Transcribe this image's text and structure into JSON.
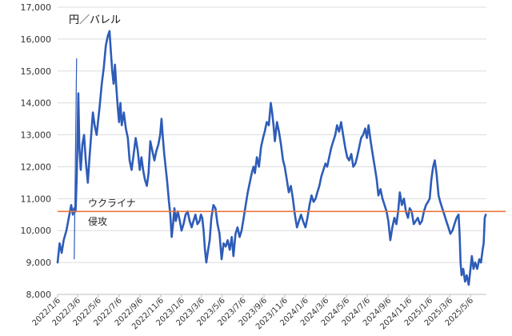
{
  "chart_data": {
    "type": "line",
    "unit_label": "円／バレル",
    "ylim": [
      8000,
      17000
    ],
    "y_ticks": [
      "8,000",
      "9,000",
      "10,000",
      "11,000",
      "12,000",
      "13,000",
      "14,000",
      "15,000",
      "16,000",
      "17,000"
    ],
    "y_tick_values": [
      8000,
      9000,
      10000,
      11000,
      12000,
      13000,
      14000,
      15000,
      16000,
      17000
    ],
    "x_ticks": [
      "2022/1/6",
      "2022/3/6",
      "2022/5/6",
      "2022/7/6",
      "2022/9/6",
      "2022/11/6",
      "2023/1/6",
      "2023/3/6",
      "2023/5/6",
      "2023/7/6",
      "2023/9/6",
      "2023/11/6",
      "2024/1/6",
      "2024/3/6",
      "2024/5/6",
      "2024/7/6",
      "2024/9/6",
      "2024/11/6",
      "2025/1/6",
      "2025/3/6",
      "2025/5/6"
    ],
    "x_range": [
      "2022-01-06",
      "2025-06-22"
    ],
    "reference_line": {
      "value": 10600,
      "color": "#e8743b"
    },
    "annotation": {
      "line1": "ウクライナ",
      "line2": "侵攻"
    },
    "grid": "horizontal",
    "legend": "none",
    "series": [
      {
        "color": "#2e5cb8",
        "points": [
          [
            "2022-01-06",
            9000
          ],
          [
            "2022-01-12",
            9600
          ],
          [
            "2022-01-18",
            9300
          ],
          [
            "2022-01-24",
            9700
          ],
          [
            "2022-02-01",
            10000
          ],
          [
            "2022-02-08",
            10400
          ],
          [
            "2022-02-15",
            10800
          ],
          [
            "2022-02-20",
            10500
          ],
          [
            "2022-02-24",
            10700
          ],
          [
            "2022-02-28",
            10600
          ],
          [
            "2022-03-03",
            11600
          ],
          [
            "2022-03-06",
            13000
          ],
          [
            "2022-03-08",
            14300
          ],
          [
            "2022-03-11",
            12600
          ],
          [
            "2022-03-15",
            11900
          ],
          [
            "2022-03-20",
            12700
          ],
          [
            "2022-03-25",
            13000
          ],
          [
            "2022-03-30",
            12200
          ],
          [
            "2022-04-05",
            11500
          ],
          [
            "2022-04-10",
            12300
          ],
          [
            "2022-04-15",
            13000
          ],
          [
            "2022-04-20",
            13700
          ],
          [
            "2022-04-25",
            13300
          ],
          [
            "2022-05-01",
            13000
          ],
          [
            "2022-05-06",
            13500
          ],
          [
            "2022-05-10",
            13900
          ],
          [
            "2022-05-16",
            14600
          ],
          [
            "2022-05-22",
            15100
          ],
          [
            "2022-05-28",
            15800
          ],
          [
            "2022-06-03",
            16100
          ],
          [
            "2022-06-08",
            16250
          ],
          [
            "2022-06-12",
            15600
          ],
          [
            "2022-06-16",
            15000
          ],
          [
            "2022-06-20",
            14600
          ],
          [
            "2022-06-24",
            15200
          ],
          [
            "2022-06-28",
            14500
          ],
          [
            "2022-07-02",
            13900
          ],
          [
            "2022-07-06",
            13400
          ],
          [
            "2022-07-10",
            14000
          ],
          [
            "2022-07-14",
            13300
          ],
          [
            "2022-07-20",
            13700
          ],
          [
            "2022-07-26",
            13200
          ],
          [
            "2022-08-01",
            12900
          ],
          [
            "2022-08-06",
            12200
          ],
          [
            "2022-08-12",
            11900
          ],
          [
            "2022-08-18",
            12400
          ],
          [
            "2022-08-24",
            12900
          ],
          [
            "2022-08-30",
            12500
          ],
          [
            "2022-09-05",
            11900
          ],
          [
            "2022-09-10",
            12300
          ],
          [
            "2022-09-15",
            11900
          ],
          [
            "2022-09-20",
            11600
          ],
          [
            "2022-09-26",
            11400
          ],
          [
            "2022-10-01",
            11800
          ],
          [
            "2022-10-06",
            12800
          ],
          [
            "2022-10-12",
            12500
          ],
          [
            "2022-10-18",
            12200
          ],
          [
            "2022-10-24",
            12500
          ],
          [
            "2022-10-30",
            12700
          ],
          [
            "2022-11-04",
            13000
          ],
          [
            "2022-11-08",
            13500
          ],
          [
            "2022-11-12",
            12900
          ],
          [
            "2022-11-16",
            12400
          ],
          [
            "2022-11-20",
            12000
          ],
          [
            "2022-11-25",
            11500
          ],
          [
            "2022-11-30",
            10900
          ],
          [
            "2022-12-04",
            10500
          ],
          [
            "2022-12-08",
            9800
          ],
          [
            "2022-12-12",
            10200
          ],
          [
            "2022-12-16",
            10700
          ],
          [
            "2022-12-20",
            10300
          ],
          [
            "2022-12-26",
            10600
          ],
          [
            "2023-01-01",
            10300
          ],
          [
            "2023-01-06",
            10000
          ],
          [
            "2023-01-12",
            10200
          ],
          [
            "2023-01-18",
            10500
          ],
          [
            "2023-01-24",
            10600
          ],
          [
            "2023-01-30",
            10300
          ],
          [
            "2023-02-05",
            10100
          ],
          [
            "2023-02-10",
            10300
          ],
          [
            "2023-02-16",
            10500
          ],
          [
            "2023-02-22",
            10200
          ],
          [
            "2023-02-28",
            10300
          ],
          [
            "2023-03-04",
            10500
          ],
          [
            "2023-03-08",
            10400
          ],
          [
            "2023-03-12",
            10000
          ],
          [
            "2023-03-16",
            9400
          ],
          [
            "2023-03-20",
            9000
          ],
          [
            "2023-03-24",
            9300
          ],
          [
            "2023-03-30",
            9700
          ],
          [
            "2023-04-04",
            10400
          ],
          [
            "2023-04-10",
            10800
          ],
          [
            "2023-04-16",
            10700
          ],
          [
            "2023-04-22",
            10200
          ],
          [
            "2023-04-28",
            9900
          ],
          [
            "2023-05-04",
            9100
          ],
          [
            "2023-05-10",
            9600
          ],
          [
            "2023-05-16",
            9500
          ],
          [
            "2023-05-22",
            9700
          ],
          [
            "2023-05-28",
            9400
          ],
          [
            "2023-06-03",
            9800
          ],
          [
            "2023-06-08",
            9200
          ],
          [
            "2023-06-14",
            9900
          ],
          [
            "2023-06-20",
            10100
          ],
          [
            "2023-06-26",
            9800
          ],
          [
            "2023-07-02",
            10000
          ],
          [
            "2023-07-08",
            10400
          ],
          [
            "2023-07-14",
            10800
          ],
          [
            "2023-07-20",
            11200
          ],
          [
            "2023-07-26",
            11500
          ],
          [
            "2023-08-01",
            11800
          ],
          [
            "2023-08-06",
            12000
          ],
          [
            "2023-08-10",
            11800
          ],
          [
            "2023-08-16",
            12300
          ],
          [
            "2023-08-22",
            12000
          ],
          [
            "2023-08-28",
            12600
          ],
          [
            "2023-09-03",
            12900
          ],
          [
            "2023-09-08",
            13100
          ],
          [
            "2023-09-14",
            13400
          ],
          [
            "2023-09-20",
            13300
          ],
          [
            "2023-09-26",
            14000
          ],
          [
            "2023-09-30",
            13700
          ],
          [
            "2023-10-04",
            13300
          ],
          [
            "2023-10-08",
            12800
          ],
          [
            "2023-10-14",
            13400
          ],
          [
            "2023-10-20",
            13100
          ],
          [
            "2023-10-26",
            12700
          ],
          [
            "2023-11-01",
            12200
          ],
          [
            "2023-11-06",
            12000
          ],
          [
            "2023-11-12",
            11600
          ],
          [
            "2023-11-18",
            11200
          ],
          [
            "2023-11-24",
            11400
          ],
          [
            "2023-11-30",
            11000
          ],
          [
            "2023-12-06",
            10500
          ],
          [
            "2023-12-12",
            10100
          ],
          [
            "2023-12-18",
            10300
          ],
          [
            "2023-12-24",
            10500
          ],
          [
            "2023-12-30",
            10300
          ],
          [
            "2024-01-06",
            10100
          ],
          [
            "2024-01-12",
            10400
          ],
          [
            "2024-01-18",
            10800
          ],
          [
            "2024-01-24",
            11100
          ],
          [
            "2024-01-30",
            10900
          ],
          [
            "2024-02-05",
            11000
          ],
          [
            "2024-02-10",
            11200
          ],
          [
            "2024-02-16",
            11400
          ],
          [
            "2024-02-22",
            11700
          ],
          [
            "2024-02-28",
            11900
          ],
          [
            "2024-03-05",
            12100
          ],
          [
            "2024-03-10",
            12000
          ],
          [
            "2024-03-16",
            12300
          ],
          [
            "2024-03-22",
            12600
          ],
          [
            "2024-03-28",
            12800
          ],
          [
            "2024-04-03",
            13000
          ],
          [
            "2024-04-08",
            13300
          ],
          [
            "2024-04-14",
            13100
          ],
          [
            "2024-04-20",
            13400
          ],
          [
            "2024-04-26",
            13000
          ],
          [
            "2024-05-02",
            12600
          ],
          [
            "2024-05-08",
            12300
          ],
          [
            "2024-05-14",
            12200
          ],
          [
            "2024-05-20",
            12400
          ],
          [
            "2024-05-26",
            12000
          ],
          [
            "2024-06-01",
            12100
          ],
          [
            "2024-06-06",
            12300
          ],
          [
            "2024-06-12",
            12600
          ],
          [
            "2024-06-18",
            12900
          ],
          [
            "2024-06-24",
            13000
          ],
          [
            "2024-06-30",
            13200
          ],
          [
            "2024-07-05",
            12900
          ],
          [
            "2024-07-10",
            13300
          ],
          [
            "2024-07-16",
            12800
          ],
          [
            "2024-07-22",
            12400
          ],
          [
            "2024-07-28",
            12000
          ],
          [
            "2024-08-03",
            11600
          ],
          [
            "2024-08-08",
            11100
          ],
          [
            "2024-08-14",
            11300
          ],
          [
            "2024-08-20",
            11000
          ],
          [
            "2024-08-26",
            10800
          ],
          [
            "2024-09-01",
            10600
          ],
          [
            "2024-09-06",
            10300
          ],
          [
            "2024-09-12",
            9700
          ],
          [
            "2024-09-18",
            10100
          ],
          [
            "2024-09-24",
            10400
          ],
          [
            "2024-09-30",
            10200
          ],
          [
            "2024-10-05",
            10600
          ],
          [
            "2024-10-10",
            11200
          ],
          [
            "2024-10-16",
            10800
          ],
          [
            "2024-10-22",
            11000
          ],
          [
            "2024-10-28",
            10600
          ],
          [
            "2024-11-03",
            10400
          ],
          [
            "2024-11-08",
            10700
          ],
          [
            "2024-11-14",
            10600
          ],
          [
            "2024-11-20",
            10200
          ],
          [
            "2024-11-26",
            10300
          ],
          [
            "2024-12-02",
            10400
          ],
          [
            "2024-12-08",
            10200
          ],
          [
            "2024-12-14",
            10300
          ],
          [
            "2024-12-20",
            10600
          ],
          [
            "2024-12-26",
            10800
          ],
          [
            "2025-01-01",
            10900
          ],
          [
            "2025-01-06",
            11000
          ],
          [
            "2025-01-11",
            11600
          ],
          [
            "2025-01-16",
            12000
          ],
          [
            "2025-01-21",
            12200
          ],
          [
            "2025-01-26",
            11800
          ],
          [
            "2025-02-01",
            11100
          ],
          [
            "2025-02-06",
            10900
          ],
          [
            "2025-02-12",
            10700
          ],
          [
            "2025-02-18",
            10500
          ],
          [
            "2025-02-24",
            10300
          ],
          [
            "2025-03-02",
            10100
          ],
          [
            "2025-03-08",
            9900
          ],
          [
            "2025-03-14",
            10000
          ],
          [
            "2025-03-20",
            10200
          ],
          [
            "2025-03-26",
            10400
          ],
          [
            "2025-04-01",
            10500
          ],
          [
            "2025-04-04",
            9900
          ],
          [
            "2025-04-07",
            9000
          ],
          [
            "2025-04-10",
            8600
          ],
          [
            "2025-04-15",
            8800
          ],
          [
            "2025-04-20",
            8400
          ],
          [
            "2025-04-25",
            8600
          ],
          [
            "2025-05-01",
            8300
          ],
          [
            "2025-05-06",
            8800
          ],
          [
            "2025-05-10",
            9200
          ],
          [
            "2025-05-15",
            8800
          ],
          [
            "2025-05-20",
            9000
          ],
          [
            "2025-05-26",
            8800
          ],
          [
            "2025-06-01",
            9100
          ],
          [
            "2025-06-06",
            9000
          ],
          [
            "2025-06-11",
            9400
          ],
          [
            "2025-06-14",
            9600
          ],
          [
            "2025-06-17",
            10400
          ],
          [
            "2025-06-20",
            10500
          ]
        ]
      }
    ],
    "spike_line": {
      "color": "#2e5cb8",
      "x": [
        "2022-02-24",
        "2022-03-03"
      ],
      "y": [
        9100,
        15400
      ]
    }
  }
}
